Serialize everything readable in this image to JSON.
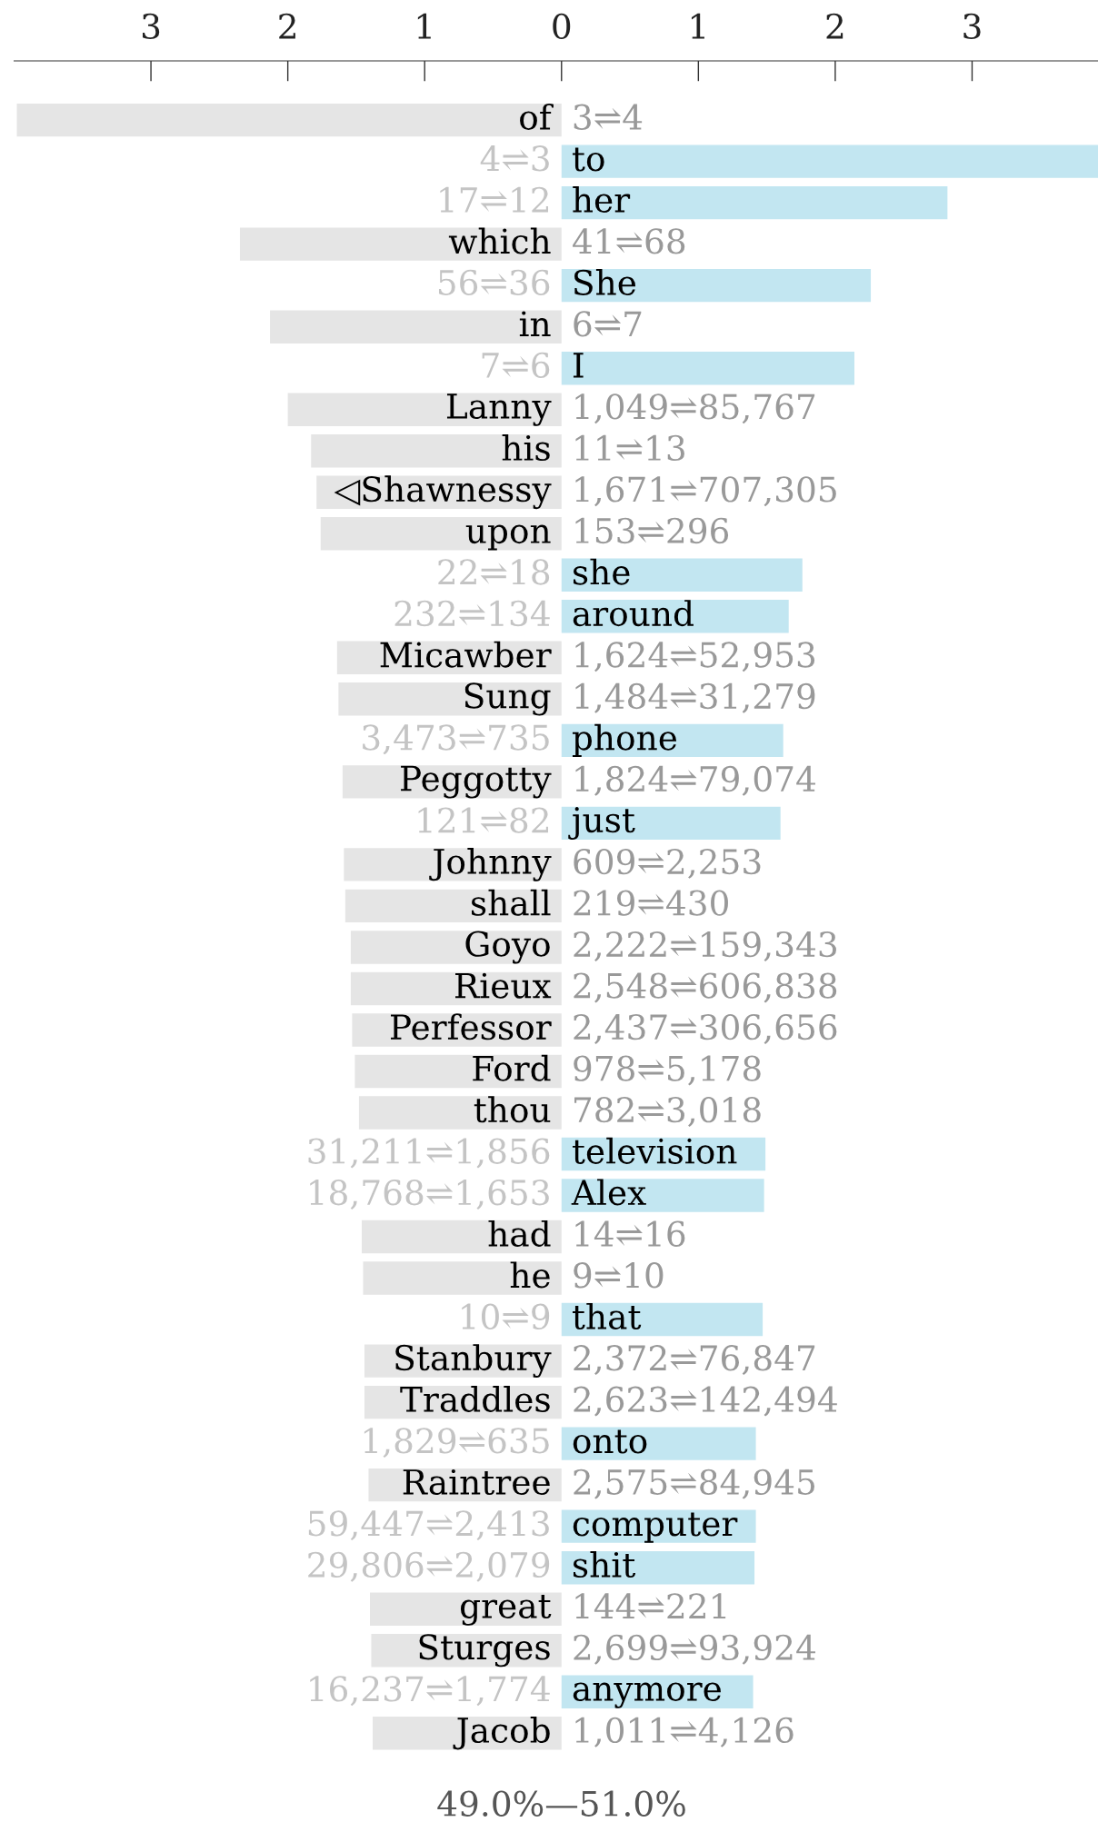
{
  "chart_data": {
    "type": "bar",
    "orientation": "horizontal",
    "categories": [
      "of",
      "to",
      "her",
      "which",
      "She",
      "in",
      "I",
      "Lanny",
      "his",
      "◁Shawnessy",
      "upon",
      "she",
      "around",
      "Micawber",
      "Sung",
      "phone",
      "Peggotty",
      "just",
      "Johnny",
      "shall",
      "Goyo",
      "Rieux",
      "Perfessor",
      "Ford",
      "thou",
      "television",
      "Alex",
      "had",
      "he",
      "that",
      "Stanbury",
      "Traddles",
      "onto",
      "Raintree",
      "computer",
      "shit",
      "great",
      "Sturges",
      "anymore",
      "Jacob"
    ],
    "values": [
      -3.98,
      3.92,
      2.82,
      -2.35,
      2.26,
      -2.13,
      2.14,
      -2.0,
      -1.83,
      -1.79,
      -1.76,
      1.76,
      1.66,
      -1.64,
      -1.63,
      1.62,
      -1.6,
      1.6,
      -1.59,
      -1.58,
      -1.54,
      -1.54,
      -1.53,
      -1.51,
      -1.48,
      1.49,
      1.48,
      -1.46,
      -1.45,
      1.47,
      -1.44,
      -1.44,
      1.42,
      -1.41,
      1.42,
      1.41,
      -1.4,
      -1.39,
      1.4,
      -1.38
    ],
    "colors": [
      "#e5e5e5",
      "#c2e6f1",
      "#c2e6f1",
      "#e5e5e5",
      "#c2e6f1",
      "#e5e5e5",
      "#c2e6f1",
      "#e5e5e5",
      "#e5e5e5",
      "#e5e5e5",
      "#e5e5e5",
      "#c2e6f1",
      "#c2e6f1",
      "#e5e5e5",
      "#e5e5e5",
      "#c2e6f1",
      "#e5e5e5",
      "#c2e6f1",
      "#e5e5e5",
      "#e5e5e5",
      "#e5e5e5",
      "#e5e5e5",
      "#e5e5e5",
      "#e5e5e5",
      "#e5e5e5",
      "#c2e6f1",
      "#c2e6f1",
      "#e5e5e5",
      "#e5e5e5",
      "#c2e6f1",
      "#e5e5e5",
      "#e5e5e5",
      "#c2e6f1",
      "#e5e5e5",
      "#c2e6f1",
      "#c2e6f1",
      "#e5e5e5",
      "#e5e5e5",
      "#c2e6f1",
      "#e5e5e5"
    ],
    "xlim": [
      -4.0,
      3.92
    ],
    "xticks": [
      {
        "value": -3,
        "label": "3"
      },
      {
        "value": -2,
        "label": "2"
      },
      {
        "value": -1,
        "label": "1"
      },
      0,
      1,
      2,
      3
    ],
    "grid": false,
    "annotations": [
      "3⇌4",
      "4⇌3",
      "17⇌12",
      "41⇌68",
      "56⇌36",
      "6⇌7",
      "7⇌6",
      "1,049⇌85,767",
      "11⇌13",
      "1,671⇌707,305",
      "153⇌296",
      "22⇌18",
      "232⇌134",
      "1,624⇌52,953",
      "1,484⇌31,279",
      "3,473⇌735",
      "1,824⇌79,074",
      "121⇌82",
      "609⇌2,253",
      "219⇌430",
      "2,222⇌159,343",
      "2,548⇌606,838",
      "2,437⇌306,656",
      "978⇌5,178",
      "782⇌3,018",
      "31,211⇌1,856",
      "18,768⇌1,653",
      "14⇌16",
      "9⇌10",
      "10⇌9",
      "2,372⇌76,847",
      "2,623⇌142,494",
      "1,829⇌635",
      "2,575⇌84,945",
      "59,447⇌2,413",
      "29,806⇌2,079",
      "144⇌221",
      "2,699⇌93,924",
      "16,237⇌1,774",
      "1,011⇌4,126",
      "49.0%—51.0%"
    ]
  }
}
